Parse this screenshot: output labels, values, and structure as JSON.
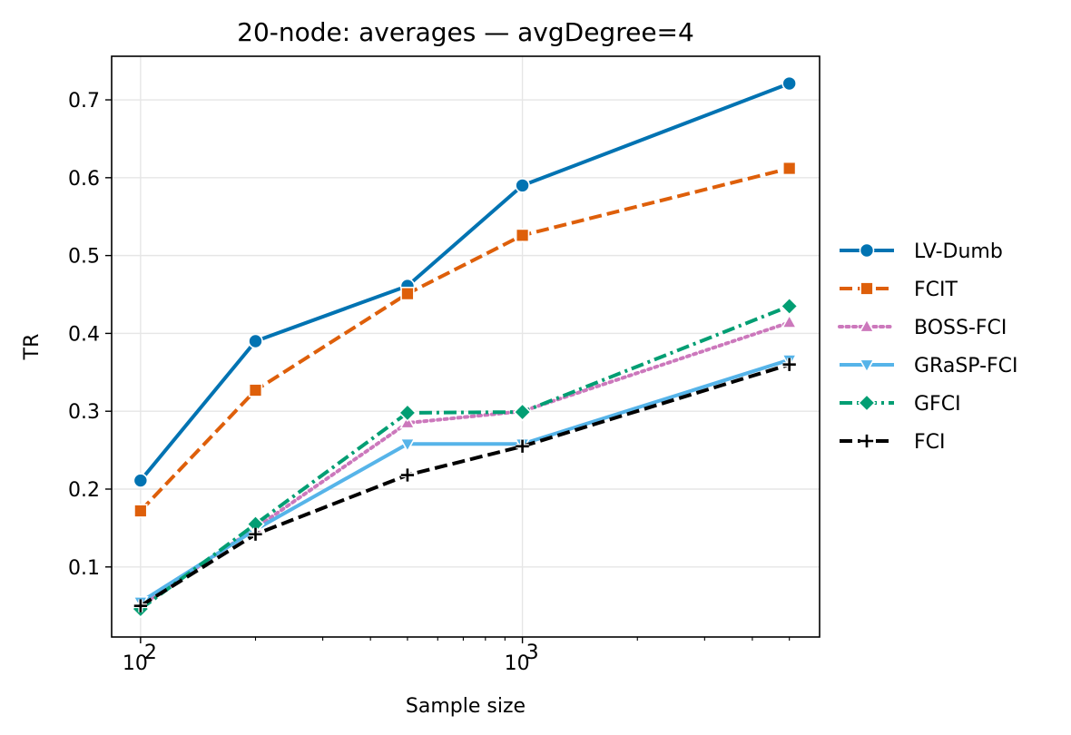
{
  "chart_data": {
    "type": "line",
    "title": "20-node: averages — avgDegree=4",
    "xlabel": "Sample size",
    "ylabel": "TR",
    "x_scale": "log",
    "x": [
      100,
      200,
      500,
      1000,
      5000
    ],
    "xlim": [
      84,
      6000
    ],
    "ylim": [
      0.01,
      0.756
    ],
    "x_ticks": [
      {
        "value": 100,
        "label": "10",
        "exp": "2"
      },
      {
        "value": 1000,
        "label": "10",
        "exp": "3"
      }
    ],
    "y_ticks": [
      0.1,
      0.2,
      0.3,
      0.4,
      0.5,
      0.6,
      0.7
    ],
    "grid": true,
    "legend_position": "right",
    "series": [
      {
        "name": "LV-Dumb",
        "values": [
          0.211,
          0.39,
          0.461,
          0.59,
          0.721
        ],
        "color": "#0173b2",
        "dash": "solid",
        "marker": "circle"
      },
      {
        "name": "FCIT",
        "values": [
          0.172,
          0.327,
          0.451,
          0.526,
          0.612
        ],
        "color": "#de5f0a",
        "dash": "dashed",
        "marker": "square"
      },
      {
        "name": "BOSS-FCI",
        "values": [
          0.05,
          0.15,
          0.285,
          0.3,
          0.414
        ],
        "color": "#cc78bc",
        "dash": "dotted",
        "marker": "triangle-up"
      },
      {
        "name": "GRaSP-FCI",
        "values": [
          0.055,
          0.148,
          0.258,
          0.258,
          0.366
        ],
        "color": "#56b4e9",
        "dash": "solid",
        "marker": "triangle-down"
      },
      {
        "name": "GFCI",
        "values": [
          0.046,
          0.155,
          0.298,
          0.299,
          0.435
        ],
        "color": "#029e73",
        "dash": "dashdot",
        "marker": "diamond"
      },
      {
        "name": "FCI",
        "values": [
          0.05,
          0.142,
          0.218,
          0.255,
          0.36
        ],
        "color": "#000000",
        "dash": "dashed",
        "marker": "plus"
      }
    ]
  }
}
